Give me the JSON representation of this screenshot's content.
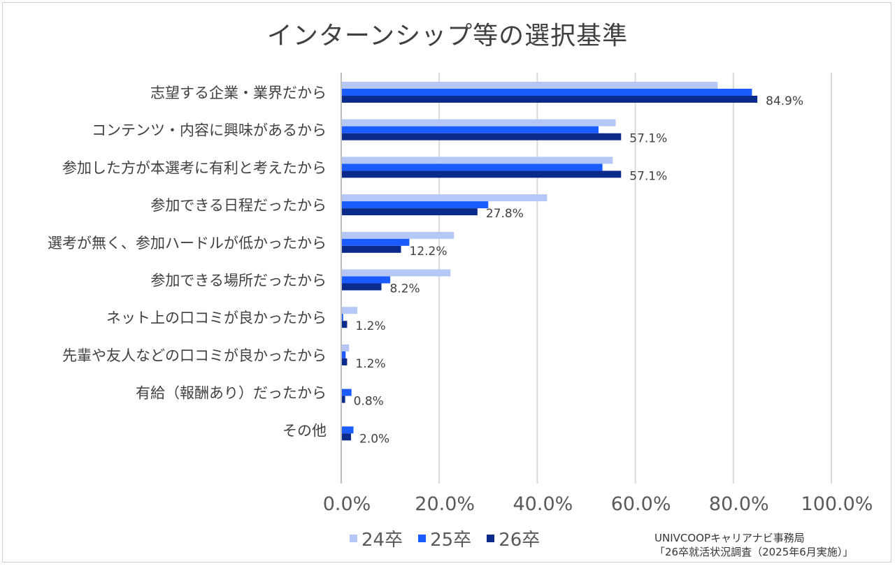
{
  "chart_data": {
    "type": "bar",
    "orientation": "horizontal",
    "title": "インターンシップ等の選択基準",
    "categories": [
      "志望する企業・業界だから",
      "コンテンツ・内容に興味があるから",
      "参加した方が本選考に有利と考えたから",
      "参加できる日程だったから",
      "選考が無く、参加ハードルが低かったから",
      "参加できる場所だったから",
      "ネット上の口コミが良かったから",
      "先輩や友人などの口コミが良かったから",
      "有給（報酬あり）だったから",
      "その他"
    ],
    "series": [
      {
        "name": "24卒",
        "color": "#b4c7f7",
        "values": [
          76.8,
          56.0,
          55.4,
          42.0,
          23.0,
          22.3,
          3.3,
          1.6,
          0.0,
          0.0
        ]
      },
      {
        "name": "25卒",
        "color": "#1a5cff",
        "values": [
          83.8,
          52.5,
          53.3,
          30.0,
          13.9,
          10.0,
          0.4,
          0.9,
          2.1,
          2.5
        ]
      },
      {
        "name": "26卒",
        "color": "#0a2a8c",
        "values": [
          84.9,
          57.1,
          57.1,
          27.8,
          12.2,
          8.2,
          1.2,
          1.2,
          0.8,
          2.0
        ]
      }
    ],
    "data_labels_series": "26卒",
    "data_labels": [
      "84.9%",
      "57.1%",
      "57.1%",
      "27.8%",
      "12.2%",
      "8.2%",
      "1.2%",
      "1.2%",
      "0.8%",
      "2.0%"
    ],
    "x_ticks": [
      "0.0%",
      "20.0%",
      "40.0%",
      "60.0%",
      "80.0%",
      "100.0%"
    ],
    "xlim": [
      0,
      100
    ],
    "grid": true,
    "legend_position": "bottom"
  },
  "source": {
    "line1": "UNIVCOOPキャリアナビ事務局",
    "line2": "「26卒就活状況調査（2025年6月実施）」"
  }
}
